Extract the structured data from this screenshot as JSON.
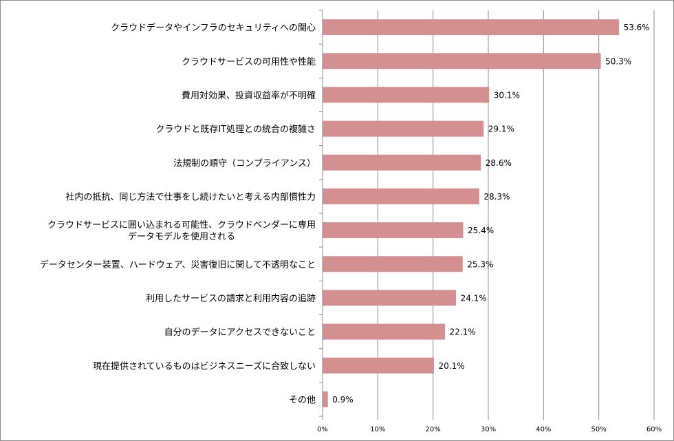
{
  "chart_data": {
    "type": "bar",
    "orientation": "horizontal",
    "title": "",
    "xlabel": "",
    "ylabel": "",
    "xlim": [
      0,
      60
    ],
    "grid": true,
    "legend": "none",
    "bar_color": "#d49090",
    "categories": [
      [
        "クラウドデータやインフラのセキュリティへの関心"
      ],
      [
        "クラウドサービスの可用性や性能"
      ],
      [
        "費用対効果、投資収益率が不明確"
      ],
      [
        "クラウドと既存IT処理との統合の複雑さ"
      ],
      [
        "法規制の順守（コンプライアンス）"
      ],
      [
        "社内の抵抗、同じ方法で仕事をし続けたいと考える内部慣性力"
      ],
      [
        "クラウドサービスに囲い込まれる可能性、クラウドベンダーに専用",
        "データモデルを使用される"
      ],
      [
        "データセンター装置、ハードウェア、災害復旧に関して不透明なこと"
      ],
      [
        "利用したサービスの請求と利用内容の追跡"
      ],
      [
        "自分のデータにアクセスできないこと"
      ],
      [
        "現在提供されているものはビジネスニーズに合致しない"
      ],
      [
        "その他"
      ]
    ],
    "values": [
      53.6,
      50.3,
      30.1,
      29.1,
      28.6,
      28.3,
      25.4,
      25.3,
      24.1,
      22.1,
      20.1,
      0.9
    ],
    "value_labels": [
      "53.6%",
      "50.3%",
      "30.1%",
      "29.1%",
      "28.6%",
      "28.3%",
      "25.4%",
      "25.3%",
      "24.1%",
      "22.1%",
      "20.1%",
      "0.9%"
    ],
    "ticks": [
      0,
      10,
      20,
      30,
      40,
      50,
      60
    ],
    "tick_labels": [
      "0%",
      "10%",
      "20%",
      "30%",
      "40%",
      "50%",
      "60%"
    ]
  }
}
